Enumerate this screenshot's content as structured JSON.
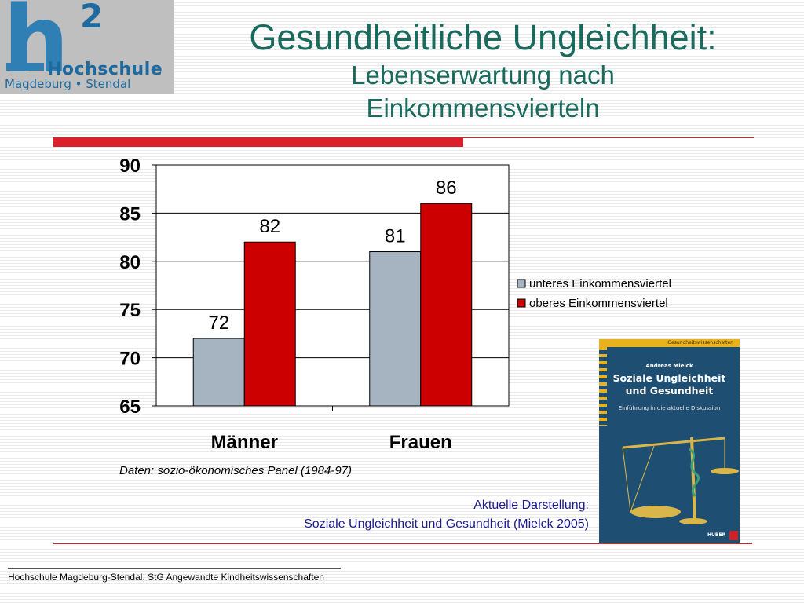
{
  "logo": {
    "mark": "h",
    "superscript": "2",
    "name": "Hochschule",
    "city": "Magdeburg • Stendal"
  },
  "header": {
    "title": "Gesundheitliche Ungleichheit:",
    "subtitle_line1": "Lebenserwartung nach",
    "subtitle_line2": "Einkommensvierteln"
  },
  "colors": {
    "accent_red": "#dd1e2b",
    "title_teal": "#1a6b5e",
    "series_low": "#a6b4c2",
    "series_high": "#cc0000"
  },
  "chart_data": {
    "type": "bar",
    "categories": [
      "Männer",
      "Frauen"
    ],
    "series": [
      {
        "name": "unteres Einkommensviertel",
        "values": [
          72,
          81
        ],
        "color": "#a6b4c2"
      },
      {
        "name": "oberes Einkommensviertel",
        "values": [
          82,
          86
        ],
        "color": "#cc0000"
      }
    ],
    "title": "",
    "xlabel": "",
    "ylabel": "",
    "ylim": [
      65,
      90
    ],
    "yticks": [
      65,
      70,
      75,
      80,
      85,
      90
    ],
    "grid": true,
    "data_labels": true,
    "legend_position": "right"
  },
  "source_note": "Daten: sozio-ökonomisches Panel (1984-97)",
  "book": {
    "series": "Gesundheitswissenschaften",
    "author": "Andreas Mielck",
    "title_line1": "Soziale Ungleichheit",
    "title_line2": "und Gesundheit",
    "subtitle": "Einführung in die aktuelle Diskussion",
    "publisher": "HUBER",
    "icon": "scales-of-justice-icon"
  },
  "book_caption": {
    "line1": "Aktuelle Darstellung:",
    "line2": "Soziale Ungleichheit und Gesundheit (Mielck 2005)"
  },
  "footer": {
    "text": "Hochschule Magdeburg-Stendal, StG Angewandte Kindheitswissenschaften"
  }
}
